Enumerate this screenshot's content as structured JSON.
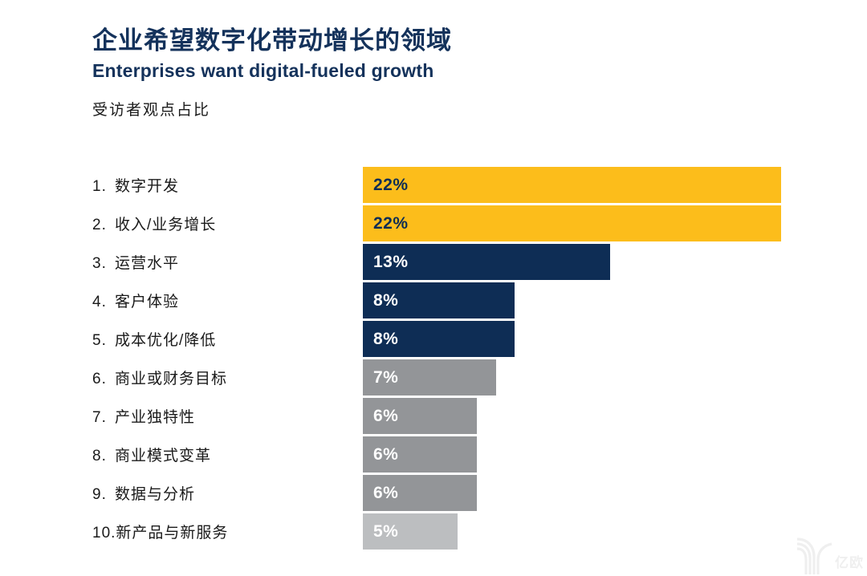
{
  "page": {
    "title": "企业希望数字化带动增长的领域",
    "subtitle": "Enterprises want digital-fueled growth",
    "caption": "受访者观点占比"
  },
  "colors": {
    "title_navy": "#14325B",
    "bar_yellow": "#FCBD1B",
    "bar_navy": "#0E2D55",
    "bar_gray": "#939598",
    "bar_light_gray": "#BCBEC0",
    "value_on_yellow": "#0E2D55",
    "value_on_dark": "#FFFFFF",
    "label_text": "#1A1A1A",
    "watermark_gray": "#EFEFEF"
  },
  "chart_data": {
    "type": "bar",
    "orientation": "horizontal",
    "title": "企业希望数字化带动增长的领域",
    "subtitle": "Enterprises want digital-fueled growth",
    "note": "受访者观点占比",
    "ranks": [
      "1.",
      "2.",
      "3.",
      "4.",
      "5.",
      "6.",
      "7.",
      "8.",
      "9.",
      "10."
    ],
    "categories": [
      "数字开发",
      "收入/业务增长",
      "运营水平",
      "客户体验",
      "成本优化/降低",
      "商业或财务目标",
      "产业独特性",
      "商业模式变革",
      "数据与分析",
      "新产品与新服务"
    ],
    "values": [
      22,
      22,
      13,
      8,
      8,
      7,
      6,
      6,
      6,
      5
    ],
    "value_labels": [
      "22%",
      "22%",
      "13%",
      "8%",
      "8%",
      "7%",
      "6%",
      "6%",
      "6%",
      "5%"
    ],
    "bar_colors": [
      "#FCBD1B",
      "#FCBD1B",
      "#0E2D55",
      "#0E2D55",
      "#0E2D55",
      "#939598",
      "#939598",
      "#939598",
      "#939598",
      "#BCBEC0"
    ],
    "value_text_colors": [
      "#0E2D55",
      "#0E2D55",
      "#FFFFFF",
      "#FFFFFF",
      "#FFFFFF",
      "#FFFFFF",
      "#FFFFFF",
      "#FFFFFF",
      "#FFFFFF",
      "#FFFFFF"
    ],
    "xlim": [
      0,
      22
    ],
    "grid": false,
    "legend": false,
    "value_unit": "%"
  },
  "watermark": {
    "logo": "yiou-logo",
    "text": "亿欧"
  }
}
